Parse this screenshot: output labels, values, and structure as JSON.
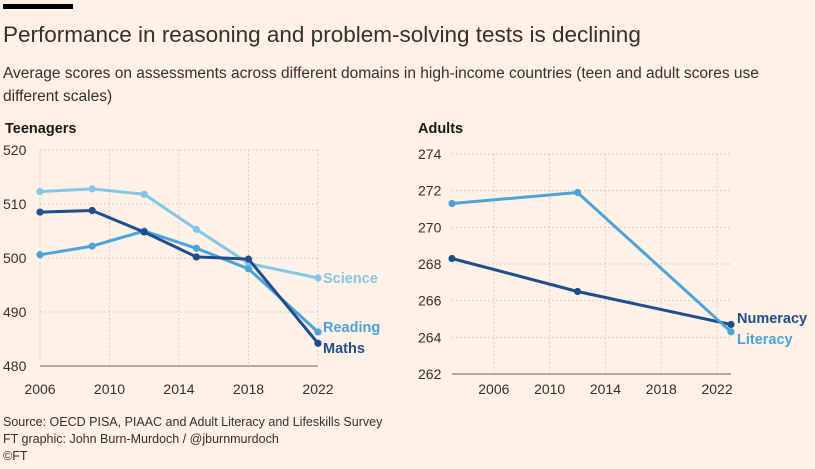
{
  "title": "Performance in reasoning and problem-solving tests is declining",
  "subtitle": "Average scores on assessments across different domains in high-income countries (teen and adult scores use different scales)",
  "footer": {
    "source": "Source: OECD PISA, PIAAC and Adult Literacy and Lifeskills Survey",
    "graphic": "FT graphic: John Burn-Murdoch / @jburnmurdoch",
    "copyright": "©FT"
  },
  "colors": {
    "background": "#fff1e5",
    "grid": "#cdc4bc",
    "dark_blue": "#1f4e8c",
    "mid_blue": "#4aa3d9",
    "light_blue": "#84c6e8"
  },
  "chart_data": [
    {
      "type": "line",
      "title": "Teenagers",
      "x_ticks": [
        2006,
        2010,
        2014,
        2018,
        2022
      ],
      "y_ticks": [
        480,
        490,
        500,
        510,
        520
      ],
      "xlim": [
        2006,
        2022
      ],
      "ylim": [
        480,
        520
      ],
      "grid": true,
      "series": [
        {
          "name": "Science",
          "color": "#84c6e8",
          "x": [
            2006,
            2009,
            2012,
            2015,
            2018,
            2022
          ],
          "y": [
            512.3,
            512.8,
            511.8,
            505.3,
            499.0,
            496.3
          ]
        },
        {
          "name": "Reading",
          "color": "#4aa3d9",
          "x": [
            2006,
            2009,
            2012,
            2015,
            2018,
            2022
          ],
          "y": [
            500.6,
            502.2,
            505.0,
            501.8,
            498.0,
            486.3
          ]
        },
        {
          "name": "Maths",
          "color": "#1f4e8c",
          "x": [
            2006,
            2009,
            2012,
            2015,
            2018,
            2022
          ],
          "y": [
            508.5,
            508.8,
            504.8,
            500.2,
            499.8,
            484.2
          ]
        }
      ]
    },
    {
      "type": "line",
      "title": "Adults",
      "x_ticks": [
        2006,
        2010,
        2014,
        2018,
        2022
      ],
      "y_ticks": [
        262,
        264,
        266,
        268,
        270,
        272,
        274
      ],
      "xlim": [
        2003,
        2023
      ],
      "ylim": [
        262,
        274
      ],
      "grid": true,
      "series": [
        {
          "name": "Numeracy",
          "color": "#1f4e8c",
          "x": [
            2003,
            2012,
            2023
          ],
          "y": [
            268.3,
            266.5,
            264.7
          ]
        },
        {
          "name": "Literacy",
          "color": "#4aa3d9",
          "x": [
            2003,
            2012,
            2023
          ],
          "y": [
            271.3,
            271.9,
            264.3
          ]
        }
      ]
    }
  ]
}
